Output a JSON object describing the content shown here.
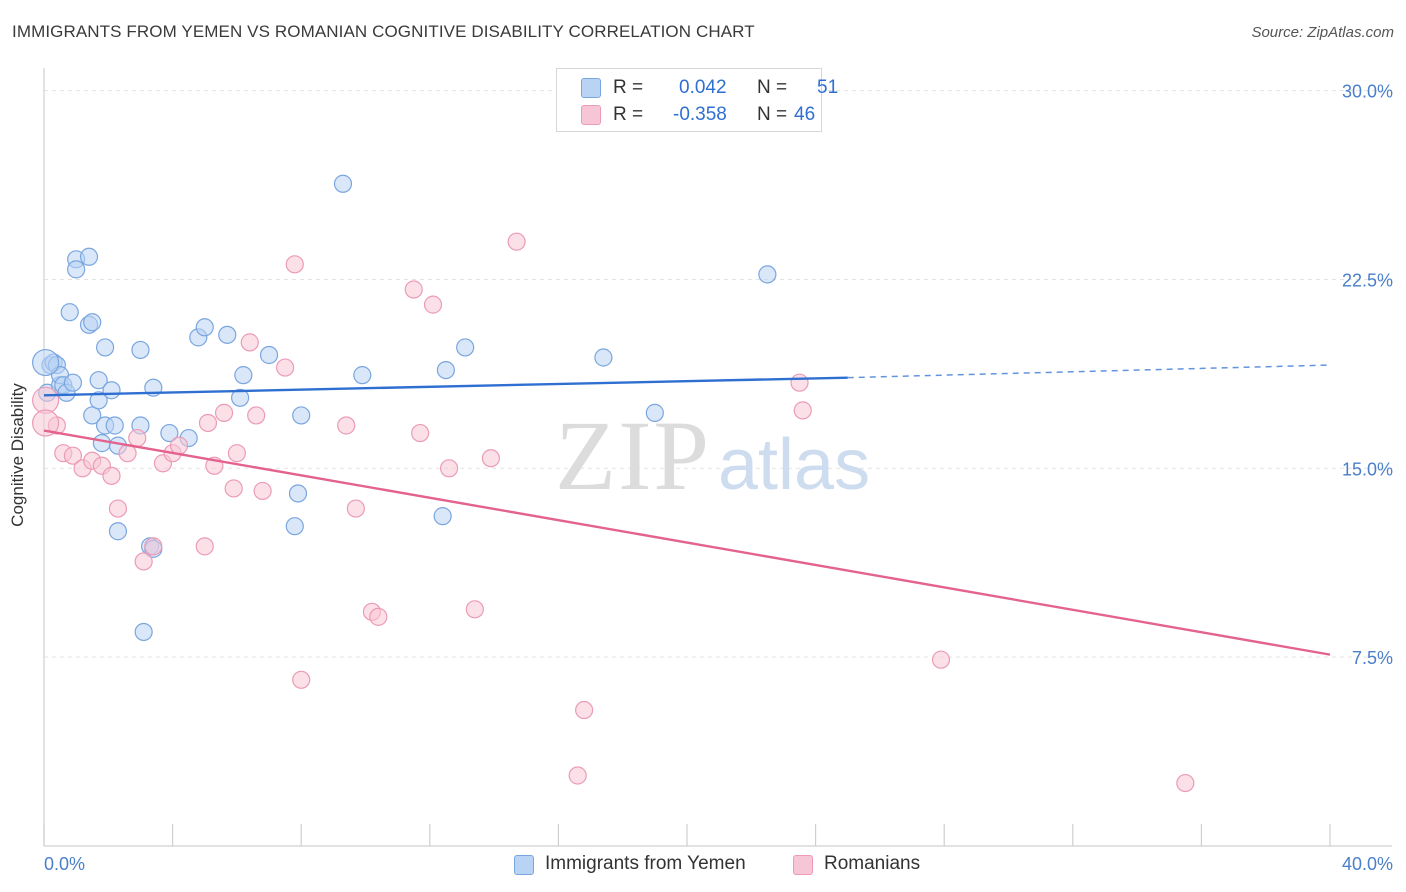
{
  "title": "IMMIGRANTS FROM YEMEN VS ROMANIAN COGNITIVE DISABILITY CORRELATION CHART",
  "source": "Source: ZipAtlas.com",
  "watermark": {
    "zip": "ZIP",
    "atlas": "atlas"
  },
  "legend": {
    "rows": [
      {
        "r_label": "R =",
        "r_value": "0.042",
        "n_label": "N =",
        "n_value": "51"
      },
      {
        "r_label": "R =",
        "r_value": "-0.358",
        "n_label": "N =",
        "n_value": "46"
      }
    ]
  },
  "bottom_legend": [
    "Immigrants from Yemen",
    "Romanians"
  ],
  "colors": {
    "blue_fill": "#b9d3f4",
    "blue_stroke": "#7aa6df",
    "blue_line": "#2f6fd1",
    "pink_fill": "#f7c6d6",
    "pink_stroke": "#eb9bb7",
    "pink_line": "#e4628e",
    "tick_text": "#4a7fc9",
    "grid": "#e3e3e3"
  },
  "chart_data": {
    "type": "scatter",
    "title": "IMMIGRANTS FROM YEMEN VS ROMANIAN COGNITIVE DISABILITY CORRELATION CHART",
    "xlabel": "",
    "ylabel": "Cognitive Disability",
    "xlim": [
      0,
      40
    ],
    "ylim": [
      0,
      30.5
    ],
    "x_tick_labels": [
      "0.0%",
      "40.0%"
    ],
    "y_ticks": [
      7.5,
      15.0,
      22.5,
      30.0
    ],
    "y_tick_labels": [
      "7.5%",
      "15.0%",
      "22.5%",
      "30.0%"
    ],
    "grid": true,
    "legend_position": "top-center",
    "series": [
      {
        "name": "Immigrants from Yemen",
        "color": "#7aa6df",
        "points": [
          [
            0.1,
            18.0
          ],
          [
            0.2,
            19.1
          ],
          [
            0.3,
            19.2
          ],
          [
            0.4,
            19.1
          ],
          [
            0.5,
            18.3
          ],
          [
            0.5,
            18.7
          ],
          [
            0.6,
            18.3
          ],
          [
            0.7,
            18.0
          ],
          [
            0.8,
            21.2
          ],
          [
            0.9,
            18.4
          ],
          [
            1.0,
            23.3
          ],
          [
            1.0,
            22.9
          ],
          [
            1.4,
            23.4
          ],
          [
            1.4,
            20.7
          ],
          [
            1.5,
            20.8
          ],
          [
            1.5,
            17.1
          ],
          [
            1.7,
            18.5
          ],
          [
            1.7,
            17.7
          ],
          [
            1.8,
            16.0
          ],
          [
            1.9,
            19.8
          ],
          [
            1.9,
            16.7
          ],
          [
            2.1,
            18.1
          ],
          [
            2.2,
            16.7
          ],
          [
            2.3,
            15.9
          ],
          [
            2.3,
            12.5
          ],
          [
            3.0,
            19.7
          ],
          [
            3.0,
            16.7
          ],
          [
            3.1,
            8.5
          ],
          [
            3.3,
            11.9
          ],
          [
            3.4,
            18.2
          ],
          [
            3.4,
            11.8
          ],
          [
            3.9,
            16.4
          ],
          [
            4.5,
            16.2
          ],
          [
            4.8,
            20.2
          ],
          [
            5.0,
            20.6
          ],
          [
            5.7,
            20.3
          ],
          [
            6.1,
            17.8
          ],
          [
            6.2,
            18.7
          ],
          [
            7.0,
            19.5
          ],
          [
            7.8,
            12.7
          ],
          [
            7.9,
            14.0
          ],
          [
            8.0,
            17.1
          ],
          [
            9.3,
            26.3
          ],
          [
            9.9,
            18.7
          ],
          [
            12.4,
            13.1
          ],
          [
            12.5,
            18.9
          ],
          [
            13.1,
            19.8
          ],
          [
            17.4,
            19.4
          ],
          [
            19.0,
            17.2
          ],
          [
            22.5,
            22.7
          ],
          [
            0.05,
            19.2
          ]
        ]
      },
      {
        "name": "Romanians",
        "color": "#eb9bb7",
        "points": [
          [
            0.05,
            17.7
          ],
          [
            0.4,
            16.7
          ],
          [
            0.6,
            15.6
          ],
          [
            0.9,
            15.5
          ],
          [
            1.2,
            15.0
          ],
          [
            1.5,
            15.3
          ],
          [
            1.8,
            15.1
          ],
          [
            2.1,
            14.7
          ],
          [
            2.3,
            13.4
          ],
          [
            2.6,
            15.6
          ],
          [
            2.9,
            16.2
          ],
          [
            3.1,
            11.3
          ],
          [
            3.4,
            11.9
          ],
          [
            3.7,
            15.2
          ],
          [
            4.0,
            15.6
          ],
          [
            4.2,
            15.9
          ],
          [
            5.0,
            11.9
          ],
          [
            5.1,
            16.8
          ],
          [
            5.3,
            15.1
          ],
          [
            5.6,
            17.2
          ],
          [
            5.9,
            14.2
          ],
          [
            6.0,
            15.6
          ],
          [
            6.4,
            20.0
          ],
          [
            6.6,
            17.1
          ],
          [
            6.8,
            14.1
          ],
          [
            7.5,
            19.0
          ],
          [
            7.8,
            23.1
          ],
          [
            8.0,
            6.6
          ],
          [
            9.4,
            16.7
          ],
          [
            9.7,
            13.4
          ],
          [
            10.2,
            9.3
          ],
          [
            10.4,
            9.1
          ],
          [
            11.5,
            22.1
          ],
          [
            11.7,
            16.4
          ],
          [
            12.1,
            21.5
          ],
          [
            12.6,
            15.0
          ],
          [
            13.4,
            9.4
          ],
          [
            13.9,
            15.4
          ],
          [
            14.7,
            24.0
          ],
          [
            16.6,
            2.8
          ],
          [
            16.8,
            5.4
          ],
          [
            23.5,
            18.4
          ],
          [
            23.6,
            17.3
          ],
          [
            27.9,
            7.4
          ],
          [
            35.5,
            2.5
          ],
          [
            0.05,
            16.8
          ]
        ]
      }
    ],
    "trendlines": [
      {
        "series": "Immigrants from Yemen",
        "x0": 0,
        "y0": 17.9,
        "x1": 25,
        "y1": 18.6,
        "dashed_to_x": 40,
        "dashed_to_y": 19.1
      },
      {
        "series": "Romanians",
        "x0": 0,
        "y0": 16.5,
        "x1": 40,
        "y1": 7.6
      }
    ]
  }
}
